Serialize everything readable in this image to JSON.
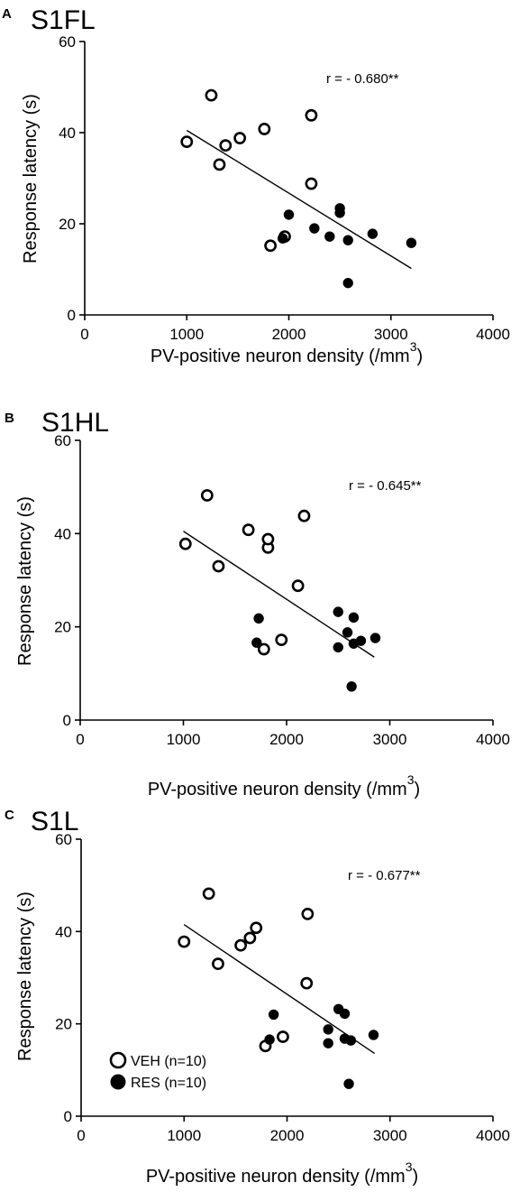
{
  "chart_data": [
    {
      "type": "scatter",
      "letter": "A",
      "title": "S1FL",
      "xlabel": "PV-positive neuron density (/mm",
      "xlabel_sup": "3",
      "xlabel_end": ")",
      "ylabel": "Response latency (s)",
      "xlim": [
        0,
        4000
      ],
      "ylim": [
        0,
        60
      ],
      "xticks": [
        0,
        1000,
        2000,
        3000,
        4000
      ],
      "yticks": [
        0,
        20,
        40,
        60
      ],
      "annotation": "r = - 0.680**",
      "fit_line": {
        "x": [
          1000,
          3200
        ],
        "y": [
          40.5,
          10.2
        ]
      },
      "series": [
        {
          "name": "VEH (n=10)",
          "marker": "open",
          "x": [
            1000,
            1240,
            1320,
            1380,
            1520,
            1760,
            1820,
            1960,
            2220,
            2220
          ],
          "y": [
            38,
            48.2,
            33,
            37.2,
            38.8,
            40.8,
            15.2,
            17.2,
            28.8,
            43.8
          ]
        },
        {
          "name": "RES (n=10)",
          "marker": "filled",
          "x": [
            1940,
            2000,
            2250,
            2400,
            2500,
            2500,
            2580,
            2580,
            2820,
            3200
          ],
          "y": [
            16.8,
            22,
            19,
            17.2,
            22.4,
            23.4,
            16.4,
            7,
            17.8,
            15.8
          ]
        }
      ]
    },
    {
      "type": "scatter",
      "letter": "B",
      "title": "S1HL",
      "xlabel": "PV-positive neuron density (/mm",
      "xlabel_sup": "3",
      "xlabel_end": ")",
      "ylabel": "Response latency (s)",
      "xlim": [
        0,
        4000
      ],
      "ylim": [
        0,
        60
      ],
      "xticks": [
        0,
        1000,
        2000,
        3000,
        4000
      ],
      "yticks": [
        0,
        20,
        40,
        60
      ],
      "annotation": "r = - 0.645**",
      "fit_line": {
        "x": [
          1000,
          2850
        ],
        "y": [
          40.5,
          13.5
        ]
      },
      "series": [
        {
          "name": "VEH (n=10)",
          "marker": "open",
          "x": [
            1020,
            1230,
            1340,
            1630,
            1780,
            1820,
            1820,
            1950,
            2110,
            2170
          ],
          "y": [
            37.8,
            48.2,
            33,
            40.8,
            15.2,
            37,
            38.8,
            17.2,
            28.8,
            43.8
          ]
        },
        {
          "name": "RES (n=10)",
          "marker": "filled",
          "x": [
            1710,
            1730,
            2500,
            2500,
            2590,
            2630,
            2650,
            2650,
            2720,
            2860
          ],
          "y": [
            16.6,
            21.8,
            23.2,
            15.6,
            18.8,
            7.2,
            22,
            16.4,
            17,
            17.6
          ]
        }
      ]
    },
    {
      "type": "scatter",
      "letter": "C",
      "title": "S1L",
      "xlabel": "PV-positive neuron density (/mm",
      "xlabel_sup": "3",
      "xlabel_end": ")",
      "ylabel": "Response latency (s)",
      "xlim": [
        0,
        4000
      ],
      "ylim": [
        0,
        60
      ],
      "xticks": [
        0,
        1000,
        2000,
        3000,
        4000
      ],
      "yticks": [
        0,
        20,
        40,
        60
      ],
      "annotation": "r = - 0.677**",
      "legend": [
        {
          "label": "VEH (n=10)",
          "marker": "open"
        },
        {
          "label": "RES (n=10)",
          "marker": "filled"
        }
      ],
      "fit_line": {
        "x": [
          1000,
          2850
        ],
        "y": [
          41.5,
          13.6
        ]
      },
      "series": [
        {
          "name": "VEH (n=10)",
          "marker": "open",
          "x": [
            1000,
            1240,
            1330,
            1550,
            1640,
            1700,
            1790,
            1960,
            2190,
            2200
          ],
          "y": [
            37.8,
            48.2,
            33,
            37,
            38.6,
            40.8,
            15.2,
            17.2,
            28.8,
            43.8
          ]
        },
        {
          "name": "RES (n=10)",
          "marker": "filled",
          "x": [
            1830,
            1870,
            2400,
            2400,
            2500,
            2560,
            2560,
            2600,
            2620,
            2840
          ],
          "y": [
            16.6,
            22,
            18.8,
            15.8,
            23.2,
            22.2,
            16.8,
            7,
            16.4,
            17.6
          ]
        }
      ]
    }
  ]
}
